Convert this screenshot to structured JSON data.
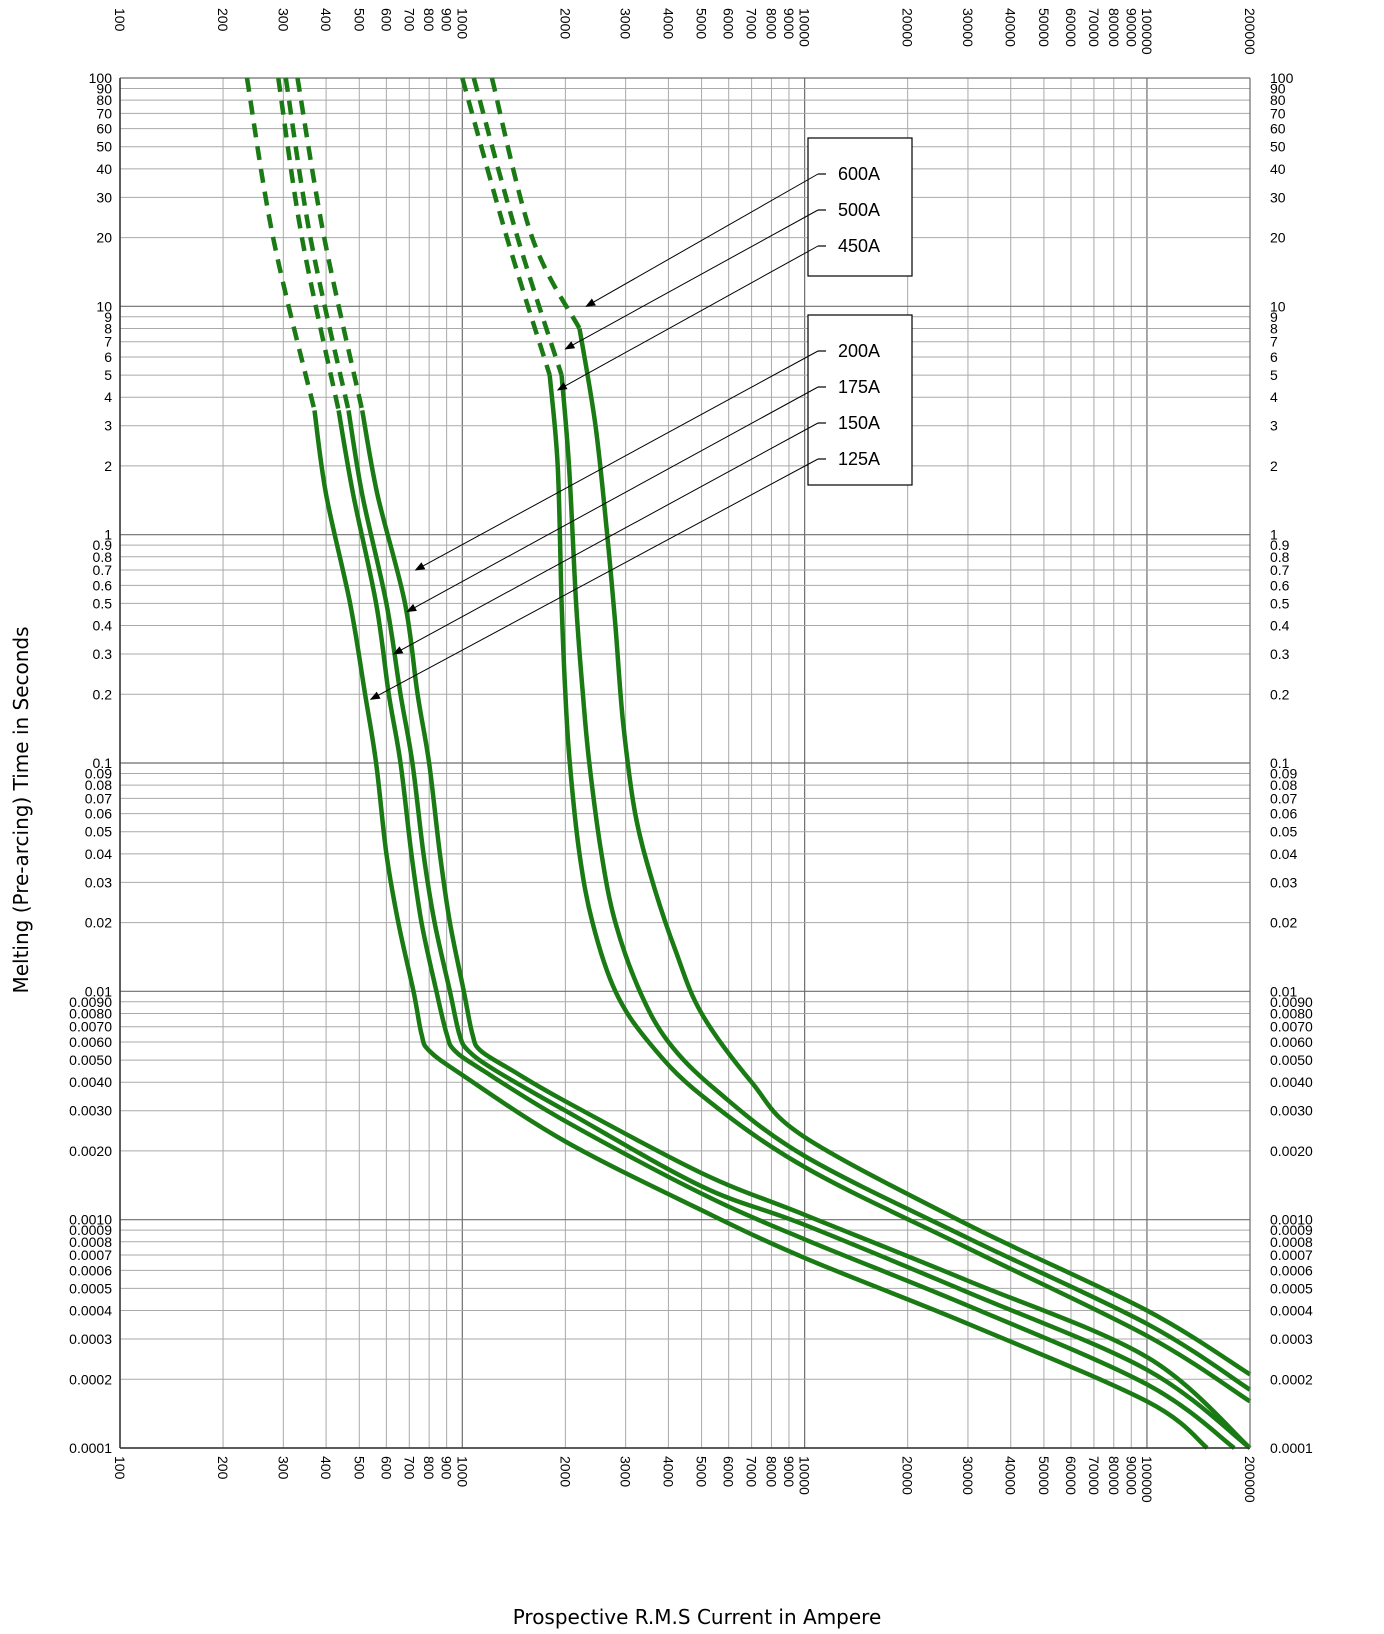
{
  "chart_data": {
    "type": "line",
    "xlabel": "Prospective R.M.S Current in Ampere",
    "ylabel": "Melting (Pre-arcing) Time in Seconds",
    "xscale": "log",
    "yscale": "log",
    "xlim": [
      100,
      200000
    ],
    "ylim": [
      0.0001,
      100
    ],
    "grid": true,
    "line_color": "#1a7a14",
    "dashed_region": "time above ~3.5 s (low-current groups) and above ~15 s (high-current groups)",
    "x_ticks": [
      "100",
      "200",
      "300",
      "400",
      "500",
      "600",
      "700",
      "800",
      "900",
      "1000",
      "2000",
      "3000",
      "4000",
      "5000",
      "6000",
      "7000",
      "8000",
      "9000",
      "10000",
      "20000",
      "30000",
      "40000",
      "50000",
      "60000",
      "70000",
      "80000",
      "90000",
      "100000",
      "200000"
    ],
    "y_ticks_left": [
      "100",
      "90",
      "80",
      "70",
      "60",
      "50",
      "40",
      "30",
      "20",
      "10",
      "9",
      "8",
      "7",
      "6",
      "5",
      "4",
      "3",
      "2",
      "1",
      "0.9",
      "0.8",
      "0.7",
      "0.6",
      "0.5",
      "0.4",
      "0.3",
      "0.2",
      "0.1",
      "0.09",
      "0.08",
      "0.07",
      "0.06",
      "0.05",
      "0.04",
      "0.03",
      "0.02",
      "0.01",
      "0.0090",
      "0.0080",
      "0.0070",
      "0.0060",
      "0.0050",
      "0.0040",
      "0.0030",
      "0.0020",
      "0.0010",
      "0.0009",
      "0.0008",
      "0.0007",
      "0.0006",
      "0.0005",
      "0.0004",
      "0.0003",
      "0.0002",
      "0.0001"
    ],
    "y_ticks_right": [
      "100",
      "90",
      "80",
      "70",
      "60",
      "50",
      "40",
      "30",
      "20",
      "10",
      "9",
      "8",
      "7",
      "6",
      "5",
      "4",
      "3",
      "2",
      "1",
      "0.9",
      "0.8",
      "0.7",
      "0.6",
      "0.5",
      "0.4",
      "0.3",
      "0.2",
      "0.1",
      "0.09",
      "0.08",
      "0.07",
      "0.06",
      "0.05",
      "0.04",
      "0.03",
      "0.02",
      "0.01",
      "0.0090",
      "0.0080",
      "0.0070",
      "0.0060",
      "0.0050",
      "0.0040",
      "0.0030",
      "0.0020",
      "0.0010",
      "0.0009",
      "0.0008",
      "0.0007",
      "0.0006",
      "0.0005",
      "0.0004",
      "0.0003",
      "0.0002",
      "0.0001"
    ],
    "legend_groups": [
      {
        "labels": [
          "600A",
          "500A",
          "450A"
        ]
      },
      {
        "labels": [
          "200A",
          "175A",
          "150A",
          "125A"
        ]
      }
    ],
    "series": [
      {
        "name": "125A",
        "points": [
          [
            235,
            100
          ],
          [
            280,
            20
          ],
          [
            370,
            3.5
          ],
          [
            400,
            1.5
          ],
          [
            470,
            0.5
          ],
          [
            520,
            0.2
          ],
          [
            560,
            0.1
          ],
          [
            600,
            0.04
          ],
          [
            650,
            0.02
          ],
          [
            720,
            0.01
          ],
          [
            760,
            0.0065
          ],
          [
            800,
            0.0055
          ],
          [
            1000,
            0.0043
          ],
          [
            2000,
            0.0022
          ],
          [
            5000,
            0.0011
          ],
          [
            10000,
            0.00068
          ],
          [
            30000,
            0.00035
          ],
          [
            100000,
            0.00016
          ],
          [
            150000,
            0.0001
          ]
        ]
      },
      {
        "name": "150A",
        "points": [
          [
            290,
            100
          ],
          [
            340,
            20
          ],
          [
            435,
            3.5
          ],
          [
            480,
            1.5
          ],
          [
            560,
            0.5
          ],
          [
            610,
            0.2
          ],
          [
            660,
            0.1
          ],
          [
            710,
            0.04
          ],
          [
            760,
            0.02
          ],
          [
            840,
            0.01
          ],
          [
            900,
            0.0065
          ],
          [
            950,
            0.0055
          ],
          [
            1150,
            0.0045
          ],
          [
            2000,
            0.0027
          ],
          [
            5000,
            0.0013
          ],
          [
            10000,
            0.00082
          ],
          [
            30000,
            0.00042
          ],
          [
            100000,
            0.00019
          ],
          [
            180000,
            0.0001
          ]
        ]
      },
      {
        "name": "175A",
        "points": [
          [
            305,
            100
          ],
          [
            360,
            20
          ],
          [
            465,
            3.5
          ],
          [
            510,
            1.5
          ],
          [
            600,
            0.5
          ],
          [
            660,
            0.2
          ],
          [
            715,
            0.1
          ],
          [
            770,
            0.04
          ],
          [
            830,
            0.02
          ],
          [
            920,
            0.01
          ],
          [
            980,
            0.0065
          ],
          [
            1040,
            0.0055
          ],
          [
            1250,
            0.0045
          ],
          [
            2000,
            0.003
          ],
          [
            5000,
            0.0014
          ],
          [
            10000,
            0.00095
          ],
          [
            30000,
            0.00048
          ],
          [
            100000,
            0.00022
          ],
          [
            200000,
            0.0001
          ]
        ]
      },
      {
        "name": "200A",
        "points": [
          [
            330,
            100
          ],
          [
            395,
            20
          ],
          [
            510,
            3.5
          ],
          [
            565,
            1.5
          ],
          [
            680,
            0.5
          ],
          [
            740,
            0.2
          ],
          [
            800,
            0.1
          ],
          [
            860,
            0.04
          ],
          [
            920,
            0.02
          ],
          [
            1010,
            0.01
          ],
          [
            1070,
            0.0065
          ],
          [
            1130,
            0.0055
          ],
          [
            1400,
            0.0045
          ],
          [
            2000,
            0.0033
          ],
          [
            5000,
            0.0016
          ],
          [
            10000,
            0.00105
          ],
          [
            30000,
            0.00054
          ],
          [
            100000,
            0.00025
          ],
          [
            200000,
            0.0001
          ]
        ]
      },
      {
        "name": "450A",
        "points": [
          [
            1000,
            100
          ],
          [
            1350,
            20
          ],
          [
            1800,
            5
          ],
          [
            1900,
            2
          ],
          [
            1950,
            0.5
          ],
          [
            2000,
            0.2
          ],
          [
            2060,
            0.1
          ],
          [
            2200,
            0.04
          ],
          [
            2400,
            0.02
          ],
          [
            2800,
            0.01
          ],
          [
            3500,
            0.006
          ],
          [
            5000,
            0.0035
          ],
          [
            10000,
            0.0017
          ],
          [
            30000,
            0.00075
          ],
          [
            100000,
            0.00031
          ],
          [
            200000,
            0.00016
          ]
        ]
      },
      {
        "name": "500A",
        "points": [
          [
            1080,
            100
          ],
          [
            1450,
            20
          ],
          [
            1950,
            5
          ],
          [
            2050,
            2
          ],
          [
            2150,
            0.5
          ],
          [
            2250,
            0.2
          ],
          [
            2350,
            0.1
          ],
          [
            2550,
            0.04
          ],
          [
            2800,
            0.02
          ],
          [
            3300,
            0.01
          ],
          [
            4000,
            0.006
          ],
          [
            5500,
            0.0037
          ],
          [
            10000,
            0.0019
          ],
          [
            30000,
            0.00083
          ],
          [
            100000,
            0.00035
          ],
          [
            200000,
            0.00018
          ]
        ]
      },
      {
        "name": "600A",
        "points": [
          [
            1220,
            100
          ],
          [
            1600,
            20
          ],
          [
            2200,
            8
          ],
          [
            2450,
            3
          ],
          [
            2650,
            1
          ],
          [
            2800,
            0.4
          ],
          [
            2950,
            0.15
          ],
          [
            3200,
            0.06
          ],
          [
            3600,
            0.03
          ],
          [
            4200,
            0.015
          ],
          [
            5000,
            0.008
          ],
          [
            7000,
            0.004
          ],
          [
            10000,
            0.0023
          ],
          [
            30000,
            0.00095
          ],
          [
            100000,
            0.0004
          ],
          [
            200000,
            0.00021
          ]
        ]
      }
    ]
  }
}
